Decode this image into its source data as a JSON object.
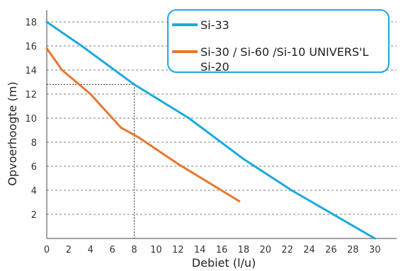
{
  "chart_data": {
    "type": "line",
    "title": "",
    "xlabel": "Debiet (l/u)",
    "ylabel": "Opvoerhoogte (m)",
    "xlim": [
      0,
      32
    ],
    "ylim": [
      0,
      19
    ],
    "xticks": [
      0,
      2,
      4,
      6,
      8,
      10,
      12,
      14,
      16,
      18,
      20,
      22,
      24,
      26,
      28,
      30
    ],
    "yticks": [
      2,
      4,
      6,
      8,
      10,
      12,
      14,
      16,
      18
    ],
    "grid": "horizontal dashed",
    "legend_position": "top-right",
    "series": [
      {
        "name": "Si-33",
        "color": "#1ba9e1",
        "x": [
          0,
          3.2,
          8,
          13,
          18,
          22.4,
          30
        ],
        "y": [
          18,
          16,
          12.8,
          10,
          6.6,
          4,
          0
        ]
      },
      {
        "name": "Si-30 / Si-60 /Si-10 UNIVERS'L Si-20",
        "color": "#e8772e",
        "x": [
          0,
          1.4,
          4,
          6.8,
          8.4,
          12,
          17.6
        ],
        "y": [
          15.8,
          14,
          12,
          9.2,
          8.4,
          6.2,
          3.1
        ]
      }
    ],
    "annotation": {
      "guide_x": 8,
      "guide_y": 12.8,
      "style": "dotted"
    }
  }
}
